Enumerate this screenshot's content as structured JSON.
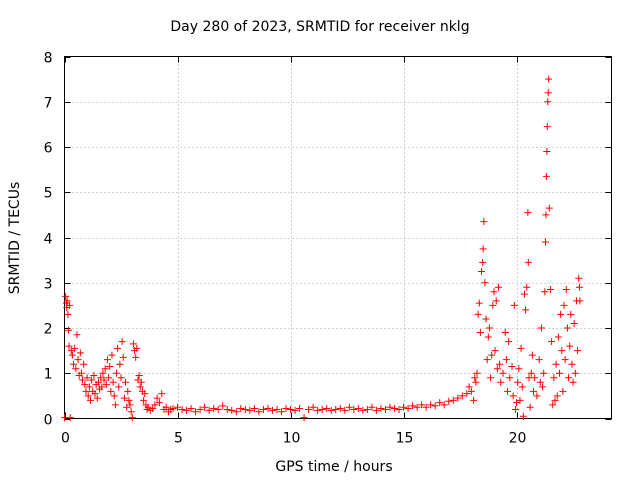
{
  "chart_data": {
    "type": "scatter",
    "title": "Day 280 of 2023, SRMTID for receiver nklg",
    "xlabel": "GPS time / hours",
    "ylabel": "SRMTID / TECUs",
    "xlim": [
      0,
      24.2
    ],
    "ylim": [
      0,
      8
    ],
    "xticks": [
      0,
      5,
      10,
      15,
      20
    ],
    "yticks": [
      0,
      1,
      2,
      3,
      4,
      5,
      6,
      7,
      8
    ],
    "grid": true,
    "marker": "+",
    "color": "#ff0000",
    "series": [
      {
        "name": "SRMTID",
        "points": [
          [
            0.0,
            0.02
          ],
          [
            0.05,
            2.7
          ],
          [
            0.08,
            2.55
          ],
          [
            0.1,
            2.45
          ],
          [
            0.12,
            2.6
          ],
          [
            0.15,
            2.3
          ],
          [
            0.18,
            1.95
          ],
          [
            0.2,
            1.6
          ],
          [
            0.22,
            2.5
          ],
          [
            0.25,
            0.02
          ],
          [
            0.3,
            1.5
          ],
          [
            0.35,
            1.4
          ],
          [
            0.4,
            1.2
          ],
          [
            0.45,
            1.55
          ],
          [
            0.5,
            1.1
          ],
          [
            0.55,
            1.85
          ],
          [
            0.6,
            1.3
          ],
          [
            0.65,
            0.95
          ],
          [
            0.7,
            1.45
          ],
          [
            0.75,
            1.0
          ],
          [
            0.8,
            0.85
          ],
          [
            0.85,
            1.2
          ],
          [
            0.9,
            0.75
          ],
          [
            0.95,
            0.6
          ],
          [
            1.0,
            0.9
          ],
          [
            1.05,
            0.5
          ],
          [
            1.1,
            0.7
          ],
          [
            1.15,
            0.4
          ],
          [
            1.2,
            0.85
          ],
          [
            1.25,
            0.6
          ],
          [
            1.3,
            0.95
          ],
          [
            1.35,
            0.55
          ],
          [
            1.4,
            0.75
          ],
          [
            1.45,
            0.45
          ],
          [
            1.5,
            0.8
          ],
          [
            1.55,
            0.65
          ],
          [
            1.6,
            0.9
          ],
          [
            1.65,
            0.7
          ],
          [
            1.7,
            1.0
          ],
          [
            1.75,
            0.85
          ],
          [
            1.8,
            1.1
          ],
          [
            1.85,
            0.75
          ],
          [
            1.9,
            1.3
          ],
          [
            1.95,
            0.9
          ],
          [
            2.0,
            1.15
          ],
          [
            2.05,
            0.6
          ],
          [
            2.1,
            1.4
          ],
          [
            2.15,
            0.8
          ],
          [
            2.2,
            0.5
          ],
          [
            2.25,
            0.3
          ],
          [
            2.3,
            1.0
          ],
          [
            2.35,
            1.55
          ],
          [
            2.4,
            0.7
          ],
          [
            2.45,
            1.2
          ],
          [
            2.5,
            0.9
          ],
          [
            2.55,
            1.7
          ],
          [
            2.6,
            1.35
          ],
          [
            2.65,
            0.45
          ],
          [
            2.7,
            0.8
          ],
          [
            2.75,
            0.25
          ],
          [
            2.8,
            0.6
          ],
          [
            2.85,
            0.4
          ],
          [
            2.9,
            0.3
          ],
          [
            2.95,
            0.15
          ],
          [
            3.0,
            0.02
          ],
          [
            3.05,
            1.65
          ],
          [
            3.1,
            1.5
          ],
          [
            3.15,
            1.35
          ],
          [
            3.2,
            1.55
          ],
          [
            3.25,
            0.85
          ],
          [
            3.3,
            0.95
          ],
          [
            3.35,
            0.7
          ],
          [
            3.4,
            0.8
          ],
          [
            3.45,
            0.6
          ],
          [
            3.5,
            0.4
          ],
          [
            3.55,
            0.55
          ],
          [
            3.6,
            0.3
          ],
          [
            3.65,
            0.2
          ],
          [
            3.7,
            0.25
          ],
          [
            3.8,
            0.18
          ],
          [
            3.9,
            0.22
          ],
          [
            4.0,
            0.3
          ],
          [
            4.1,
            0.45
          ],
          [
            4.2,
            0.35
          ],
          [
            4.3,
            0.55
          ],
          [
            4.4,
            0.2
          ],
          [
            4.5,
            0.25
          ],
          [
            4.6,
            0.15
          ],
          [
            4.7,
            0.2
          ],
          [
            4.8,
            0.22
          ],
          [
            5.0,
            0.25
          ],
          [
            5.2,
            0.2
          ],
          [
            5.4,
            0.18
          ],
          [
            5.6,
            0.22
          ],
          [
            5.8,
            0.15
          ],
          [
            6.0,
            0.2
          ],
          [
            6.2,
            0.25
          ],
          [
            6.4,
            0.18
          ],
          [
            6.6,
            0.22
          ],
          [
            6.8,
            0.2
          ],
          [
            7.0,
            0.28
          ],
          [
            7.2,
            0.2
          ],
          [
            7.4,
            0.18
          ],
          [
            7.6,
            0.15
          ],
          [
            7.8,
            0.22
          ],
          [
            8.0,
            0.2
          ],
          [
            8.2,
            0.18
          ],
          [
            8.4,
            0.22
          ],
          [
            8.6,
            0.15
          ],
          [
            8.8,
            0.2
          ],
          [
            9.0,
            0.22
          ],
          [
            9.2,
            0.18
          ],
          [
            9.4,
            0.2
          ],
          [
            9.6,
            0.15
          ],
          [
            9.8,
            0.22
          ],
          [
            10.0,
            0.2
          ],
          [
            10.2,
            0.18
          ],
          [
            10.4,
            0.22
          ],
          [
            10.6,
            0.02
          ],
          [
            10.8,
            0.2
          ],
          [
            11.0,
            0.25
          ],
          [
            11.2,
            0.18
          ],
          [
            11.4,
            0.2
          ],
          [
            11.6,
            0.22
          ],
          [
            11.8,
            0.18
          ],
          [
            12.0,
            0.2
          ],
          [
            12.2,
            0.22
          ],
          [
            12.4,
            0.18
          ],
          [
            12.6,
            0.25
          ],
          [
            12.8,
            0.2
          ],
          [
            13.0,
            0.22
          ],
          [
            13.2,
            0.18
          ],
          [
            13.4,
            0.2
          ],
          [
            13.6,
            0.25
          ],
          [
            13.8,
            0.18
          ],
          [
            14.0,
            0.22
          ],
          [
            14.2,
            0.2
          ],
          [
            14.4,
            0.25
          ],
          [
            14.6,
            0.22
          ],
          [
            14.8,
            0.2
          ],
          [
            15.0,
            0.25
          ],
          [
            15.2,
            0.22
          ],
          [
            15.4,
            0.28
          ],
          [
            15.6,
            0.25
          ],
          [
            15.8,
            0.3
          ],
          [
            16.0,
            0.25
          ],
          [
            16.2,
            0.3
          ],
          [
            16.4,
            0.28
          ],
          [
            16.6,
            0.35
          ],
          [
            16.8,
            0.3
          ],
          [
            17.0,
            0.38
          ],
          [
            17.2,
            0.4
          ],
          [
            17.4,
            0.45
          ],
          [
            17.6,
            0.5
          ],
          [
            17.8,
            0.55
          ],
          [
            17.9,
            0.7
          ],
          [
            18.0,
            0.6
          ],
          [
            18.1,
            0.4
          ],
          [
            18.15,
            0.9
          ],
          [
            18.2,
            0.8
          ],
          [
            18.25,
            1.0
          ],
          [
            18.3,
            2.3
          ],
          [
            18.35,
            2.55
          ],
          [
            18.4,
            1.9
          ],
          [
            18.45,
            3.25
          ],
          [
            18.5,
            3.45
          ],
          [
            18.52,
            3.75
          ],
          [
            18.55,
            4.35
          ],
          [
            18.6,
            3.0
          ],
          [
            18.65,
            2.2
          ],
          [
            18.7,
            1.3
          ],
          [
            18.75,
            1.8
          ],
          [
            18.8,
            2.0
          ],
          [
            18.85,
            0.9
          ],
          [
            18.9,
            1.4
          ],
          [
            18.95,
            2.5
          ],
          [
            19.0,
            2.8
          ],
          [
            19.05,
            1.5
          ],
          [
            19.1,
            2.6
          ],
          [
            19.15,
            1.1
          ],
          [
            19.2,
            2.9
          ],
          [
            19.25,
            1.2
          ],
          [
            19.3,
            0.8
          ],
          [
            19.4,
            1.0
          ],
          [
            19.5,
            1.9
          ],
          [
            19.55,
            1.3
          ],
          [
            19.6,
            0.6
          ],
          [
            19.65,
            1.7
          ],
          [
            19.7,
            0.9
          ],
          [
            19.8,
            1.15
          ],
          [
            19.85,
            0.5
          ],
          [
            19.9,
            2.5
          ],
          [
            19.95,
            0.2
          ],
          [
            20.0,
            0.35
          ],
          [
            20.05,
            0.8
          ],
          [
            20.1,
            1.1
          ],
          [
            20.15,
            0.4
          ],
          [
            20.2,
            1.55
          ],
          [
            20.25,
            0.7
          ],
          [
            20.3,
            0.05
          ],
          [
            20.35,
            2.75
          ],
          [
            20.4,
            2.4
          ],
          [
            20.45,
            2.9
          ],
          [
            20.5,
            4.55
          ],
          [
            20.52,
            3.45
          ],
          [
            20.55,
            0.9
          ],
          [
            20.6,
            0.25
          ],
          [
            20.65,
            1.0
          ],
          [
            20.7,
            1.4
          ],
          [
            20.75,
            0.6
          ],
          [
            20.8,
            0.9
          ],
          [
            20.9,
            0.5
          ],
          [
            21.0,
            1.3
          ],
          [
            21.05,
            0.8
          ],
          [
            21.1,
            2.0
          ],
          [
            21.15,
            0.7
          ],
          [
            21.2,
            1.0
          ],
          [
            21.25,
            2.8
          ],
          [
            21.28,
            3.9
          ],
          [
            21.3,
            4.5
          ],
          [
            21.32,
            5.35
          ],
          [
            21.34,
            5.9
          ],
          [
            21.36,
            6.45
          ],
          [
            21.38,
            7.0
          ],
          [
            21.4,
            7.2
          ],
          [
            21.42,
            7.5
          ],
          [
            21.45,
            4.65
          ],
          [
            21.5,
            2.85
          ],
          [
            21.55,
            1.7
          ],
          [
            21.6,
            0.3
          ],
          [
            21.65,
            0.9
          ],
          [
            21.7,
            0.4
          ],
          [
            21.75,
            1.2
          ],
          [
            21.8,
            0.5
          ],
          [
            21.85,
            1.8
          ],
          [
            21.9,
            1.0
          ],
          [
            21.95,
            2.3
          ],
          [
            22.0,
            1.5
          ],
          [
            22.05,
            0.6
          ],
          [
            22.1,
            2.5
          ],
          [
            22.15,
            1.3
          ],
          [
            22.2,
            2.85
          ],
          [
            22.25,
            2.0
          ],
          [
            22.3,
            0.9
          ],
          [
            22.35,
            1.6
          ],
          [
            22.4,
            2.3
          ],
          [
            22.45,
            1.2
          ],
          [
            22.5,
            0.8
          ],
          [
            22.55,
            2.1
          ],
          [
            22.6,
            1.0
          ],
          [
            22.65,
            2.6
          ],
          [
            22.7,
            1.5
          ],
          [
            22.75,
            3.1
          ],
          [
            22.78,
            2.9
          ],
          [
            22.8,
            2.6
          ]
        ]
      }
    ]
  }
}
